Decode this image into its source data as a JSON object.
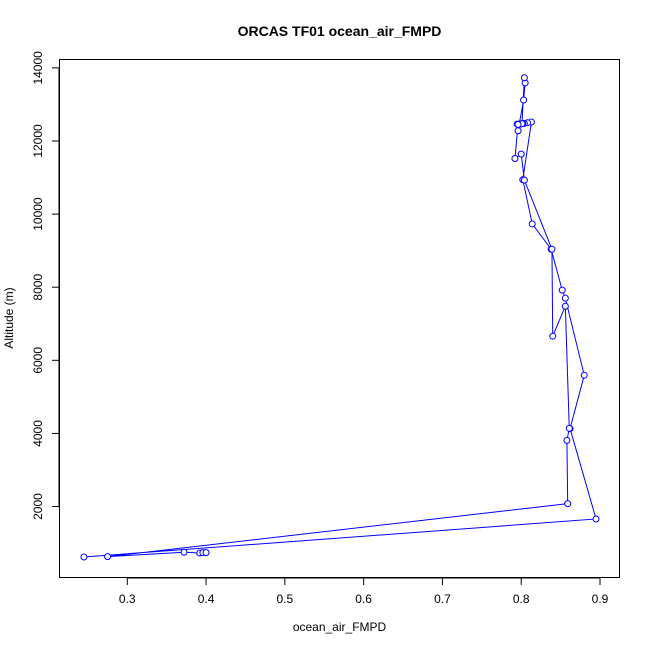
{
  "chart_data": {
    "type": "line",
    "title": "ORCAS TF01 ocean_air_FMPD",
    "xlabel": "ocean_air_FMPD",
    "ylabel": "Altitude (m)",
    "xlim": [
      0.24,
      0.9
    ],
    "ylim": [
      620,
      13750
    ],
    "x_ticks": [
      0.3,
      0.4,
      0.5,
      0.6,
      0.7,
      0.8,
      0.9
    ],
    "x_tick_labels": [
      "0.3",
      "0.4",
      "0.5",
      "0.6",
      "0.7",
      "0.8",
      "0.9"
    ],
    "y_ticks": [
      2000,
      4000,
      6000,
      8000,
      10000,
      12000,
      14000
    ],
    "y_tick_labels": [
      "2000",
      "4000",
      "6000",
      "8000",
      "10000",
      "12000",
      "14000"
    ],
    "series_color": "#0000ff",
    "marker": "open-circle",
    "series": [
      {
        "points": [
          [
            0.245,
            620
          ],
          [
            0.895,
            1660
          ],
          [
            0.862,
            4130
          ],
          [
            0.88,
            5590
          ],
          [
            0.856,
            7700
          ],
          [
            0.852,
            7920
          ],
          [
            0.838,
            9040
          ],
          [
            0.814,
            9730
          ],
          [
            0.802,
            10940
          ],
          [
            0.813,
            12520
          ],
          [
            0.808,
            12500
          ],
          [
            0.804,
            12480
          ],
          [
            0.802,
            12480
          ],
          [
            0.799,
            12460
          ],
          [
            0.797,
            12460
          ],
          [
            0.795,
            12460
          ],
          [
            0.796,
            12280
          ],
          [
            0.803,
            13120
          ],
          [
            0.805,
            13590
          ],
          [
            0.804,
            13730
          ],
          [
            0.801,
            12470
          ],
          [
            0.796,
            12450
          ],
          [
            0.792,
            11520
          ],
          [
            0.8,
            11640
          ],
          [
            0.804,
            10930
          ],
          [
            0.839,
            9040
          ],
          [
            0.84,
            6660
          ],
          [
            0.856,
            7480
          ],
          [
            0.861,
            4140
          ],
          [
            0.858,
            3810
          ],
          [
            0.859,
            2080
          ],
          [
            0.275,
            630
          ],
          [
            0.372,
            750
          ],
          [
            0.392,
            730
          ],
          [
            0.396,
            740
          ],
          [
            0.4,
            740
          ]
        ]
      }
    ]
  }
}
